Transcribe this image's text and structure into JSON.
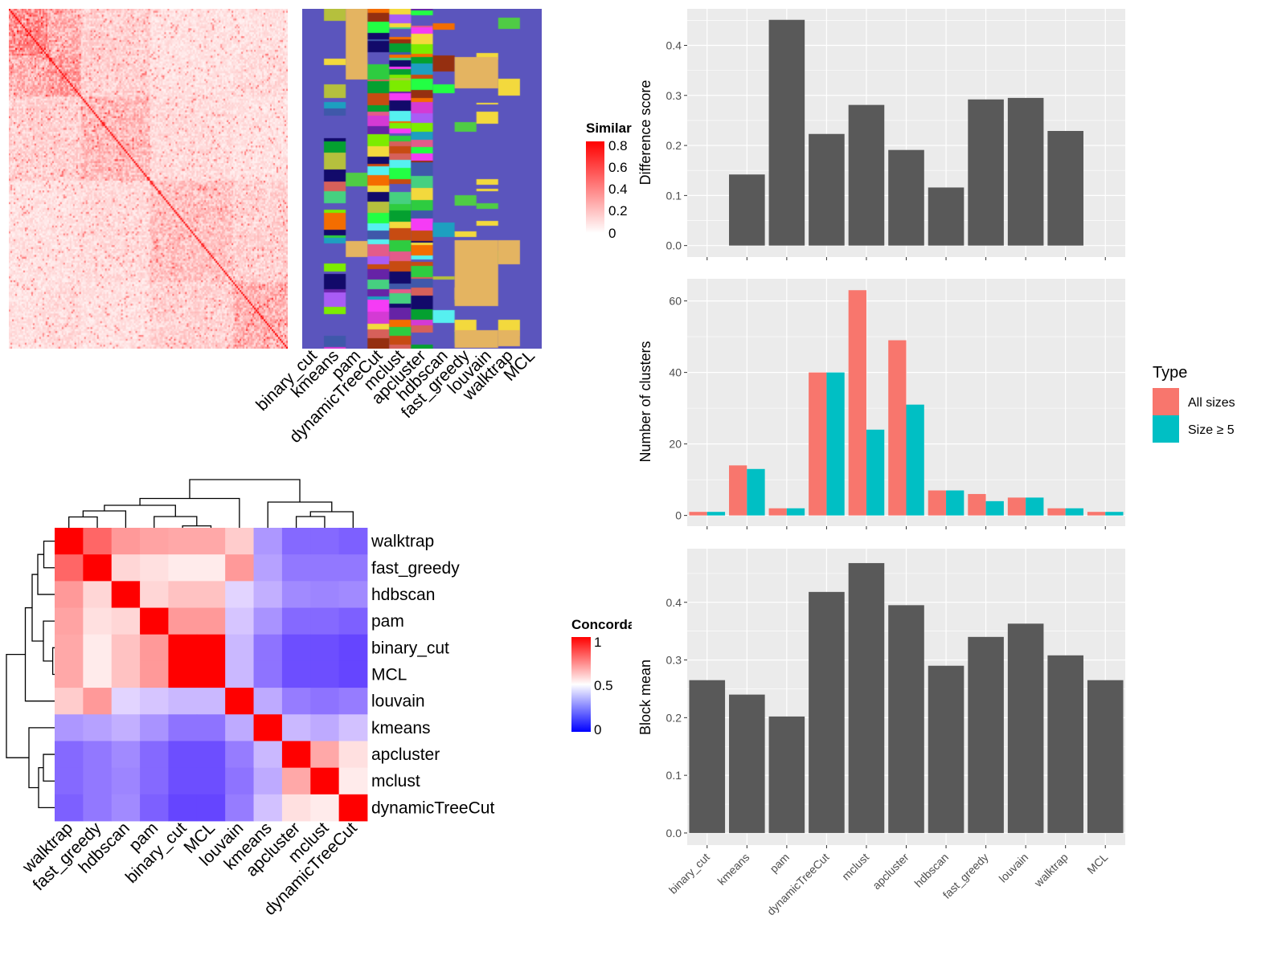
{
  "chart_data": [
    {
      "type": "heatmap",
      "title": "",
      "legend": {
        "title": "Similarity",
        "ticks": [
          "0.8",
          "0.6",
          "0.4",
          "0.2",
          "0"
        ],
        "range": [
          0,
          0.8
        ],
        "colors": [
          "#ffffff",
          "#ff0000"
        ],
        "placement": "right"
      }
    },
    {
      "type": "heatmap",
      "title": "",
      "column_labels": [
        "binary_cut",
        "kmeans",
        "pam",
        "dynamicTreeCut",
        "mclust",
        "apcluster",
        "hdbscan",
        "fast_greedy",
        "louvain",
        "walktrap",
        "MCL"
      ],
      "base_color": "#5b55bd"
    },
    {
      "type": "heatmap",
      "title": "",
      "labels": [
        "walktrap",
        "fast_greedy",
        "hdbscan",
        "pam",
        "binary_cut",
        "MCL",
        "louvain",
        "kmeans",
        "apcluster",
        "mclust",
        "dynamicTreeCut"
      ],
      "matrix": [
        [
          1.0,
          0.8,
          0.7,
          0.68,
          0.67,
          0.67,
          0.6,
          0.33,
          0.23,
          0.23,
          0.21
        ],
        [
          0.8,
          1.0,
          0.58,
          0.56,
          0.54,
          0.54,
          0.7,
          0.35,
          0.26,
          0.26,
          0.26
        ],
        [
          0.7,
          0.58,
          1.0,
          0.58,
          0.62,
          0.62,
          0.46,
          0.38,
          0.3,
          0.29,
          0.3
        ],
        [
          0.68,
          0.56,
          0.58,
          1.0,
          0.7,
          0.7,
          0.43,
          0.32,
          0.23,
          0.23,
          0.21
        ],
        [
          0.67,
          0.54,
          0.62,
          0.7,
          1.0,
          1.0,
          0.4,
          0.25,
          0.17,
          0.17,
          0.15
        ],
        [
          0.67,
          0.54,
          0.62,
          0.7,
          1.0,
          1.0,
          0.4,
          0.25,
          0.17,
          0.17,
          0.15
        ],
        [
          0.6,
          0.7,
          0.46,
          0.43,
          0.4,
          0.4,
          1.0,
          0.37,
          0.27,
          0.25,
          0.27
        ],
        [
          0.33,
          0.35,
          0.38,
          0.32,
          0.25,
          0.25,
          0.37,
          1.0,
          0.4,
          0.37,
          0.42
        ],
        [
          0.23,
          0.26,
          0.3,
          0.23,
          0.17,
          0.17,
          0.27,
          0.4,
          1.0,
          0.67,
          0.56
        ],
        [
          0.23,
          0.26,
          0.29,
          0.23,
          0.17,
          0.17,
          0.25,
          0.37,
          0.67,
          1.0,
          0.54
        ],
        [
          0.21,
          0.26,
          0.3,
          0.21,
          0.15,
          0.15,
          0.27,
          0.42,
          0.56,
          0.54,
          1.0
        ]
      ],
      "dendrogram": true,
      "legend": {
        "title": "Concordance",
        "ticks": [
          "1",
          "0.5",
          "0"
        ],
        "range": [
          0,
          1
        ],
        "colors": [
          "#0000ff",
          "#ffffff",
          "#ff0000"
        ],
        "placement": "right"
      }
    },
    {
      "type": "bar",
      "categories": [
        "binary_cut",
        "kmeans",
        "pam",
        "dynamicTreeCut",
        "mclust",
        "apcluster",
        "hdbscan",
        "fast_greedy",
        "louvain",
        "walktrap",
        "MCL"
      ],
      "values": [
        0,
        0.142,
        0.451,
        0.223,
        0.281,
        0.191,
        0.116,
        0.292,
        0.295,
        0.229,
        0
      ],
      "ylabel": "Difference score",
      "yticks": [
        "0.0",
        "0.1",
        "0.2",
        "0.3",
        "0.4"
      ],
      "ylim": [
        -0.023,
        0.473
      ],
      "grid": true,
      "bar_color": "#595959",
      "show_xlabels": false
    },
    {
      "type": "bar",
      "categories": [
        "binary_cut",
        "kmeans",
        "pam",
        "dynamicTreeCut",
        "mclust",
        "apcluster",
        "hdbscan",
        "fast_greedy",
        "louvain",
        "walktrap",
        "MCL"
      ],
      "series": [
        {
          "name": "All sizes",
          "values": [
            1,
            14,
            2,
            40,
            63,
            49,
            7,
            6,
            5,
            2,
            1
          ],
          "color": "#f8766d"
        },
        {
          "name": "Size ≥ 5",
          "values": [
            1,
            13,
            2,
            40,
            24,
            31,
            7,
            4,
            5,
            2,
            1
          ],
          "color": "#00bfc4"
        }
      ],
      "ylabel": "Number of clusters",
      "yticks": [
        "0",
        "20",
        "40",
        "60"
      ],
      "ylim": [
        -3.0,
        66.2
      ],
      "grid": true,
      "legend": {
        "title": "Type",
        "placement": "right"
      },
      "show_xlabels": false
    },
    {
      "type": "bar",
      "categories": [
        "binary_cut",
        "kmeans",
        "pam",
        "dynamicTreeCut",
        "mclust",
        "apcluster",
        "hdbscan",
        "fast_greedy",
        "louvain",
        "walktrap",
        "MCL"
      ],
      "values": [
        0.265,
        0.24,
        0.202,
        0.418,
        0.468,
        0.395,
        0.29,
        0.34,
        0.363,
        0.308,
        0.265
      ],
      "ylabel": "Block mean",
      "yticks": [
        "0.0",
        "0.1",
        "0.2",
        "0.3",
        "0.4"
      ],
      "ylim": [
        -0.021,
        0.493
      ],
      "grid": true,
      "bar_color": "#595959",
      "show_xlabels": true
    }
  ]
}
